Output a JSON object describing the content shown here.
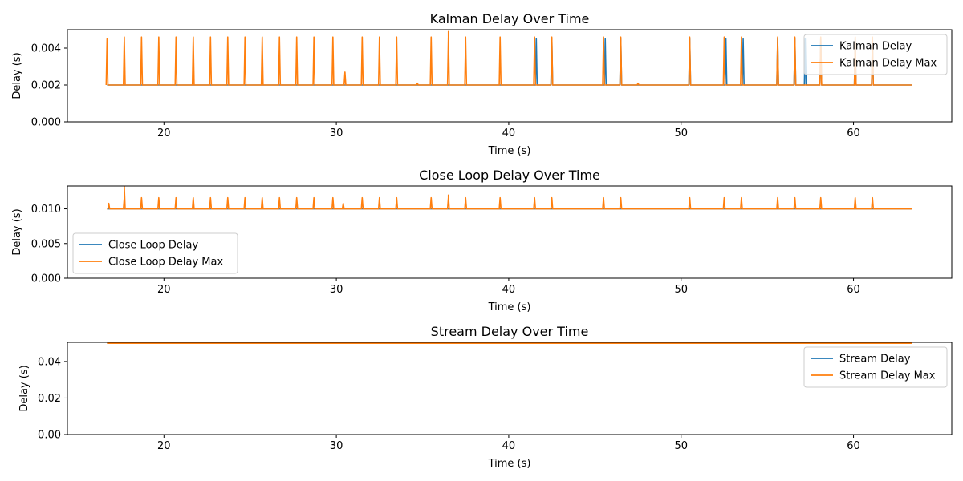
{
  "colors": {
    "mean": "#1f77b4",
    "max": "#ff7f0e"
  },
  "x_spike_times": [
    17.7,
    18.7,
    19.7,
    20.7,
    21.7,
    22.7,
    23.7,
    24.7,
    25.7,
    26.7,
    27.7,
    28.7,
    29.8,
    31.5,
    32.5,
    33.5,
    35.5,
    36.5,
    37.5,
    39.5,
    41.5,
    42.5,
    45.5,
    46.5,
    50.5,
    52.5,
    53.5,
    55.6,
    56.6,
    58.1,
    60.1,
    61.1
  ],
  "chart_data": [
    {
      "type": "line",
      "title": "Kalman Delay Over Time",
      "xlabel": "Time (s)",
      "ylabel": "Delay (s)",
      "xlim": [
        14.4,
        65.7
      ],
      "ylim": [
        0,
        0.005
      ],
      "xticks": [
        20,
        30,
        40,
        50,
        60
      ],
      "yticks": [
        0,
        0.002,
        0.004
      ],
      "ytick_labels": [
        "0.000",
        "0.002",
        "0.004"
      ],
      "x_range": [
        16.7,
        63.4
      ],
      "legend_position": "upper right",
      "series": [
        {
          "name": "Kalman Delay",
          "color": "#1f77b4",
          "baseline": 0.002,
          "spike_peak": 0.0045,
          "spike_times": [
            41.6,
            42.5,
            45.6,
            46.5,
            50.5,
            52.6,
            53.6,
            55.6,
            56.6,
            57.2,
            58.1,
            60.1,
            61.1
          ]
        },
        {
          "name": "Kalman Delay Max",
          "color": "#ff7f0e",
          "baseline": 0.002,
          "spike_peak": 0.0046,
          "extra_points": [
            [
              16.7,
              0.0045
            ],
            [
              30.5,
              0.0027
            ],
            [
              36.5,
              0.0049
            ],
            [
              34.7,
              0.0021
            ],
            [
              47.5,
              0.0021
            ]
          ]
        }
      ]
    },
    {
      "type": "line",
      "title": "Close Loop Delay Over Time",
      "xlabel": "Time (s)",
      "ylabel": "Delay (s)",
      "xlim": [
        14.4,
        65.7
      ],
      "ylim": [
        0,
        0.0133
      ],
      "xticks": [
        20,
        30,
        40,
        50,
        60
      ],
      "yticks": [
        0,
        0.005,
        0.01
      ],
      "ytick_labels": [
        "0.000",
        "0.005",
        "0.010"
      ],
      "x_range": [
        16.7,
        63.4
      ],
      "legend_position": "lower left",
      "series": [
        {
          "name": "Close Loop Delay",
          "color": "#1f77b4",
          "baseline": 0.01
        },
        {
          "name": "Close Loop Delay Max",
          "color": "#ff7f0e",
          "baseline": 0.01,
          "spike_peak": 0.0116,
          "extra_points": [
            [
              17.7,
              0.0133
            ],
            [
              36.5,
              0.012
            ],
            [
              30.4,
              0.0108
            ],
            [
              16.8,
              0.0108
            ]
          ]
        }
      ]
    },
    {
      "type": "line",
      "title": "Stream Delay Over Time",
      "xlabel": "Time (s)",
      "ylabel": "Delay (s)",
      "xlim": [
        14.4,
        65.7
      ],
      "ylim": [
        0,
        0.0505
      ],
      "xticks": [
        20,
        30,
        40,
        50,
        60
      ],
      "yticks": [
        0,
        0.02,
        0.04
      ],
      "ytick_labels": [
        "0.00",
        "0.02",
        "0.04"
      ],
      "x_range": [
        16.7,
        63.4
      ],
      "legend_position": "upper right",
      "series": [
        {
          "name": "Stream Delay",
          "color": "#1f77b4",
          "baseline": 0.05
        },
        {
          "name": "Stream Delay Max",
          "color": "#ff7f0e",
          "baseline": 0.05
        }
      ]
    }
  ]
}
